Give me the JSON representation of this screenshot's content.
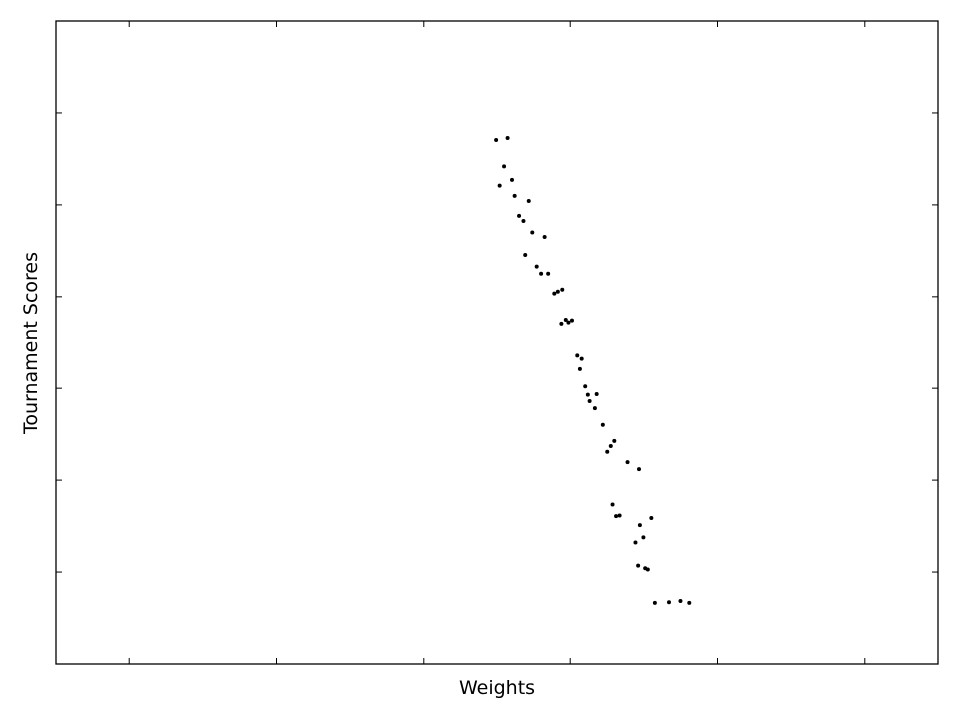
{
  "chart_data": {
    "type": "scatter",
    "xlabel": "Weights",
    "ylabel": "Tournament Scores",
    "xlim": [
      0,
      1
    ],
    "ylim": [
      0,
      1
    ],
    "grid": false,
    "legend": "none",
    "point_color": "#000000",
    "x_ticks": [
      0.083,
      0.25,
      0.417,
      0.583,
      0.75,
      0.917
    ],
    "y_ticks": [
      0.143,
      0.286,
      0.429,
      0.571,
      0.714,
      0.857
    ],
    "tick_labels_shown": false,
    "series": [
      {
        "points": [
          [
            0.499,
            0.815
          ],
          [
            0.512,
            0.818
          ],
          [
            0.508,
            0.774
          ],
          [
            0.503,
            0.744
          ],
          [
            0.517,
            0.753
          ],
          [
            0.52,
            0.728
          ],
          [
            0.525,
            0.697
          ],
          [
            0.53,
            0.689
          ],
          [
            0.536,
            0.72
          ],
          [
            0.54,
            0.671
          ],
          [
            0.554,
            0.664
          ],
          [
            0.532,
            0.636
          ],
          [
            0.545,
            0.618
          ],
          [
            0.55,
            0.607
          ],
          [
            0.558,
            0.607
          ],
          [
            0.565,
            0.576
          ],
          [
            0.569,
            0.579
          ],
          [
            0.574,
            0.582
          ],
          [
            0.573,
            0.529
          ],
          [
            0.578,
            0.535
          ],
          [
            0.581,
            0.531
          ],
          [
            0.585,
            0.534
          ],
          [
            0.591,
            0.48
          ],
          [
            0.594,
            0.459
          ],
          [
            0.596,
            0.475
          ],
          [
            0.6,
            0.432
          ],
          [
            0.603,
            0.419
          ],
          [
            0.605,
            0.409
          ],
          [
            0.611,
            0.398
          ],
          [
            0.613,
            0.42
          ],
          [
            0.62,
            0.372
          ],
          [
            0.625,
            0.33
          ],
          [
            0.629,
            0.339
          ],
          [
            0.633,
            0.347
          ],
          [
            0.631,
            0.248
          ],
          [
            0.635,
            0.23
          ],
          [
            0.639,
            0.231
          ],
          [
            0.648,
            0.314
          ],
          [
            0.661,
            0.303
          ],
          [
            0.662,
            0.216
          ],
          [
            0.657,
            0.189
          ],
          [
            0.666,
            0.197
          ],
          [
            0.66,
            0.153
          ],
          [
            0.668,
            0.149
          ],
          [
            0.671,
            0.147
          ],
          [
            0.675,
            0.227
          ],
          [
            0.695,
            0.096
          ],
          [
            0.708,
            0.098
          ],
          [
            0.718,
            0.095
          ],
          [
            0.679,
            0.095
          ]
        ]
      }
    ]
  }
}
